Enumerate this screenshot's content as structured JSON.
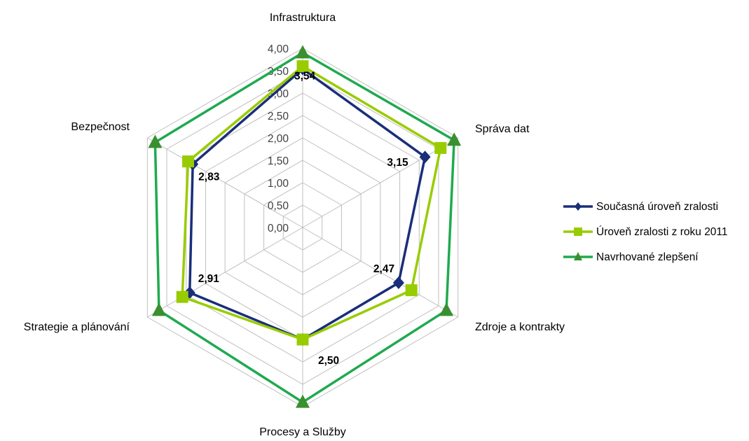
{
  "chart_data": {
    "type": "radar",
    "axes": [
      "Infrastruktura",
      "Správa dat",
      "Zdroje a kontrakty",
      "Procesy a Služby",
      "Strategie a plánování",
      "Bezpečnost"
    ],
    "range": [
      0,
      4
    ],
    "ticks": [
      "0,00",
      "0,50",
      "1,00",
      "1,50",
      "2,00",
      "2,50",
      "3,00",
      "3,50",
      "4,00"
    ],
    "grid": true,
    "legend_position": "right",
    "series": [
      {
        "name": "Současná úroveň zralosti",
        "values": [
          3.54,
          3.15,
          2.47,
          2.5,
          2.91,
          2.83
        ],
        "color": "#1a2e7a",
        "marker": "diamond"
      },
      {
        "name": "Úroveň zralosti z roku 2011",
        "values": [
          3.6,
          3.55,
          2.8,
          2.5,
          3.1,
          2.95
        ],
        "color": "#99cc00",
        "marker": "square"
      },
      {
        "name": "Navrhované zlepšení",
        "values": [
          3.9,
          3.9,
          3.7,
          3.9,
          3.7,
          3.8
        ],
        "color": "#1faa4f",
        "marker": "triangle"
      }
    ],
    "data_labels": [
      "3,54",
      "3,15",
      "2,47",
      "2,50",
      "2,91",
      "2,83"
    ]
  }
}
